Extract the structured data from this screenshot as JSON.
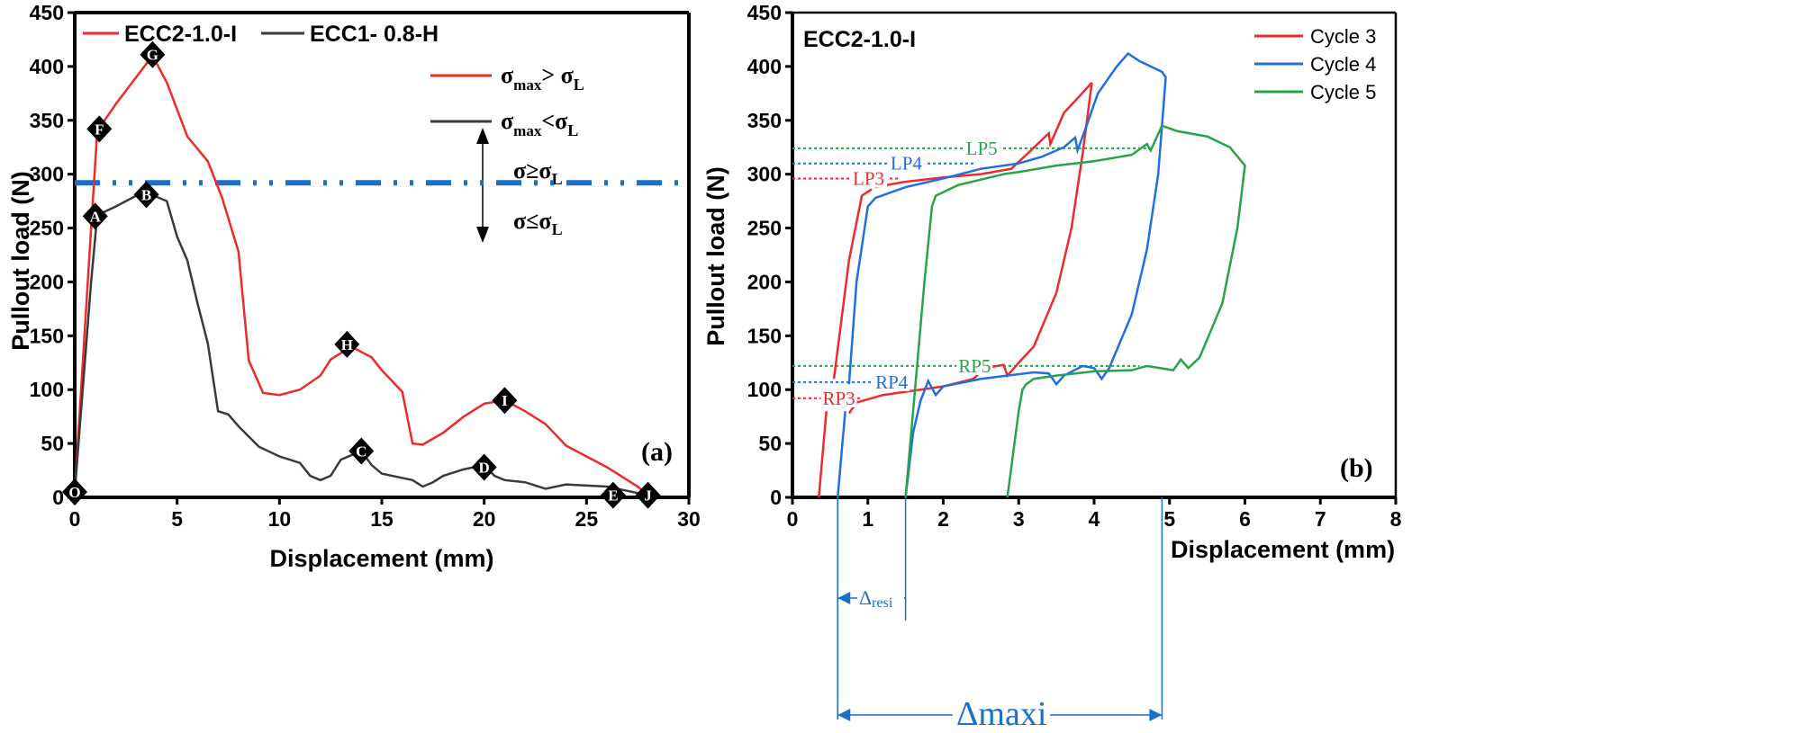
{
  "chart_data": [
    {
      "type": "line",
      "panel_label": "(a)",
      "xlabel": "Displacement (mm)",
      "ylabel": "Pullout load (N)",
      "xlim": [
        0,
        30
      ],
      "ylim": [
        0,
        450
      ],
      "xticks": [
        0,
        5,
        10,
        15,
        20,
        25,
        30
      ],
      "yticks": [
        0,
        50,
        100,
        150,
        200,
        250,
        300,
        350,
        400,
        450
      ],
      "legend_position": "top",
      "series": [
        {
          "name": "ECC2-1.0-I",
          "color": "#ee2a2a",
          "x": [
            0,
            0.8,
            1.1,
            2,
            3,
            3.8,
            4.5,
            5.5,
            6.5,
            7.2,
            8,
            8.5,
            9.2,
            10,
            11,
            12,
            12.5,
            13.5,
            14.5,
            15,
            16,
            16.5,
            17,
            18,
            19,
            20,
            21,
            22,
            23,
            24,
            25,
            26,
            27.5,
            28
          ],
          "y": [
            5,
            250,
            340,
            365,
            390,
            410,
            385,
            335,
            312,
            278,
            228,
            127,
            97,
            95,
            100,
            113,
            128,
            140,
            130,
            118,
            98,
            50,
            49,
            60,
            75,
            87,
            90,
            80,
            68,
            48,
            38,
            28,
            10,
            2
          ]
        },
        {
          "name": "ECC1- 0.8-H",
          "color": "#3a3a3a",
          "x": [
            0,
            0.8,
            1.1,
            2,
            3,
            3.5,
            4.5,
            5,
            5.5,
            6,
            6.5,
            7,
            7.5,
            8,
            9,
            10,
            11,
            11.5,
            12,
            12.5,
            13,
            14,
            14.5,
            15,
            16,
            16.5,
            17,
            17.5,
            18,
            19,
            20,
            20.5,
            21,
            22,
            23,
            24,
            26,
            27,
            28
          ],
          "y": [
            5,
            200,
            262,
            270,
            280,
            283,
            275,
            242,
            220,
            180,
            143,
            80,
            77,
            66,
            47,
            38,
            32,
            20,
            16,
            20,
            35,
            43,
            30,
            22,
            18,
            16,
            10,
            14,
            20,
            26,
            30,
            20,
            16,
            14,
            8,
            12,
            10,
            6,
            2
          ]
        }
      ],
      "markers": [
        {
          "label": "O",
          "x": 0,
          "y": 5
        },
        {
          "label": "A",
          "x": 1,
          "y": 261
        },
        {
          "label": "B",
          "x": 3.5,
          "y": 281
        },
        {
          "label": "C",
          "x": 14,
          "y": 43
        },
        {
          "label": "D",
          "x": 20,
          "y": 28
        },
        {
          "label": "E",
          "x": 26.3,
          "y": 2
        },
        {
          "label": "F",
          "x": 1.2,
          "y": 342
        },
        {
          "label": "G",
          "x": 3.8,
          "y": 411
        },
        {
          "label": "H",
          "x": 13.3,
          "y": 142
        },
        {
          "label": "I",
          "x": 21,
          "y": 90
        },
        {
          "label": "J",
          "x": 28,
          "y": 2
        }
      ],
      "reference_line": {
        "y": 292,
        "color": "#1a6fc8",
        "style": "dash-dot-dot"
      },
      "annotations": {
        "red_line": {
          "sigma": "σ",
          "sub": "max",
          "rel": "> σ",
          "sub2": "L"
        },
        "black_line": {
          "sigma": "σ",
          "sub": "max",
          "rel": "<σ",
          "sub2": "L"
        },
        "above": "σ≥σ",
        "above_sub": "L",
        "below": "σ≤σ",
        "below_sub": "L"
      }
    },
    {
      "type": "line",
      "title": "ECC2-1.0-I",
      "panel_label": "(b)",
      "xlabel": "Displacement (mm)",
      "ylabel": "Pullout load (N)",
      "xlim": [
        0,
        8
      ],
      "ylim": [
        0,
        450
      ],
      "xticks": [
        0,
        1,
        2,
        3,
        4,
        5,
        6,
        7,
        8
      ],
      "yticks": [
        0,
        50,
        100,
        150,
        200,
        250,
        300,
        350,
        400,
        450
      ],
      "legend_position": "top-right",
      "series": [
        {
          "name": "Cycle 3",
          "color": "#ee2a2a",
          "segments": [
            {
              "x": [
                0.35,
                0.45
              ],
              "y": [
                0,
                80
              ]
            },
            {
              "x": [
                0.55,
                0.75,
                0.92,
                1.05
              ],
              "y": [
                110,
                220,
                280,
                286
              ]
            },
            {
              "x": [
                1.1,
                1.5,
                2,
                2.5,
                2.9,
                3.1,
                3.4,
                3.42,
                3.6,
                3.8,
                3.97
              ],
              "y": [
                288,
                293,
                297,
                300,
                305,
                318,
                338,
                328,
                357,
                372,
                385
              ]
            },
            {
              "x": [
                0.75,
                0.85,
                1.2,
                1.6,
                2.0,
                2.4,
                2.55,
                2.8,
                2.85,
                3.0,
                3.2,
                3.5,
                3.7,
                3.85,
                3.97
              ],
              "y": [
                78,
                88,
                95,
                99,
                103,
                110,
                120,
                123,
                113,
                125,
                140,
                190,
                250,
                320,
                385
              ]
            }
          ]
        },
        {
          "name": "Cycle 4",
          "color": "#1f6fe0",
          "segments": [
            {
              "x": [
                0.6,
                0.7
              ],
              "y": [
                0,
                80
              ]
            },
            {
              "x": [
                0.75,
                0.85,
                1.0,
                1.1,
                1.5,
                2,
                2.5,
                3,
                3.3,
                3.6,
                3.75,
                3.78,
                3.9,
                4.05,
                4.3,
                4.45,
                4.6,
                4.9,
                4.95,
                4.85,
                4.7,
                4.5,
                4.2,
                4.1,
                4.0,
                3.85,
                3.6,
                3.5,
                3.4,
                3.2,
                2.5,
                2,
                1.9,
                1.8,
                1.7,
                1.6,
                1.5
              ],
              "y": [
                105,
                200,
                270,
                278,
                288,
                296,
                305,
                310,
                316,
                325,
                334,
                322,
                345,
                375,
                400,
                412,
                405,
                395,
                390,
                300,
                230,
                170,
                120,
                110,
                120,
                122,
                113,
                105,
                115,
                116,
                110,
                103,
                95,
                108,
                90,
                60,
                0
              ]
            }
          ]
        },
        {
          "name": "Cycle 5",
          "color": "#27a34a",
          "segments": [
            {
              "x": [
                1.5,
                1.6,
                1.75,
                1.85,
                1.9,
                2.2,
                2.5,
                2.8,
                3.0,
                3.5,
                4,
                4.5,
                4.7,
                4.75,
                4.9,
                5.1,
                5.5,
                5.8,
                6,
                5.9,
                5.7,
                5.4,
                5.25,
                5.15,
                5.05,
                4.7,
                4.5,
                4,
                3.5,
                3.2,
                3.1,
                3.05,
                3.0,
                2.85
              ],
              "y": [
                0,
                80,
                200,
                270,
                280,
                290,
                295,
                300,
                302,
                308,
                312,
                318,
                328,
                322,
                345,
                340,
                335,
                325,
                308,
                250,
                180,
                130,
                120,
                128,
                118,
                122,
                118,
                117,
                113,
                110,
                105,
                100,
                80,
                0
              ]
            }
          ]
        }
      ],
      "reference_lines": [
        {
          "label": "LP5",
          "y": 324,
          "x_end": 4.75,
          "color": "#27a34a"
        },
        {
          "label": "LP4",
          "y": 310,
          "x_end": 2.4,
          "color": "#1f6fe0"
        },
        {
          "label": "LP3",
          "y": 296,
          "x_end": 1.4,
          "color": "#ee2a2a"
        },
        {
          "label": "RP5",
          "y": 122,
          "x_end": 4.6,
          "color": "#27a34a"
        },
        {
          "label": "RP4",
          "y": 107,
          "x_end": 1.5,
          "color": "#1f6fe0"
        },
        {
          "label": "RP3",
          "y": 92,
          "x_end": 0.9,
          "color": "#ee2a2a"
        }
      ],
      "dimensions": [
        {
          "label": "Δ",
          "sub": "resi",
          "x_start": 0.6,
          "x_end": 1.5,
          "color": "#1a6fc8"
        },
        {
          "label": "Δmaxi",
          "x_start": 0.6,
          "x_end": 4.9,
          "color": "#1a6fc8"
        }
      ]
    }
  ]
}
